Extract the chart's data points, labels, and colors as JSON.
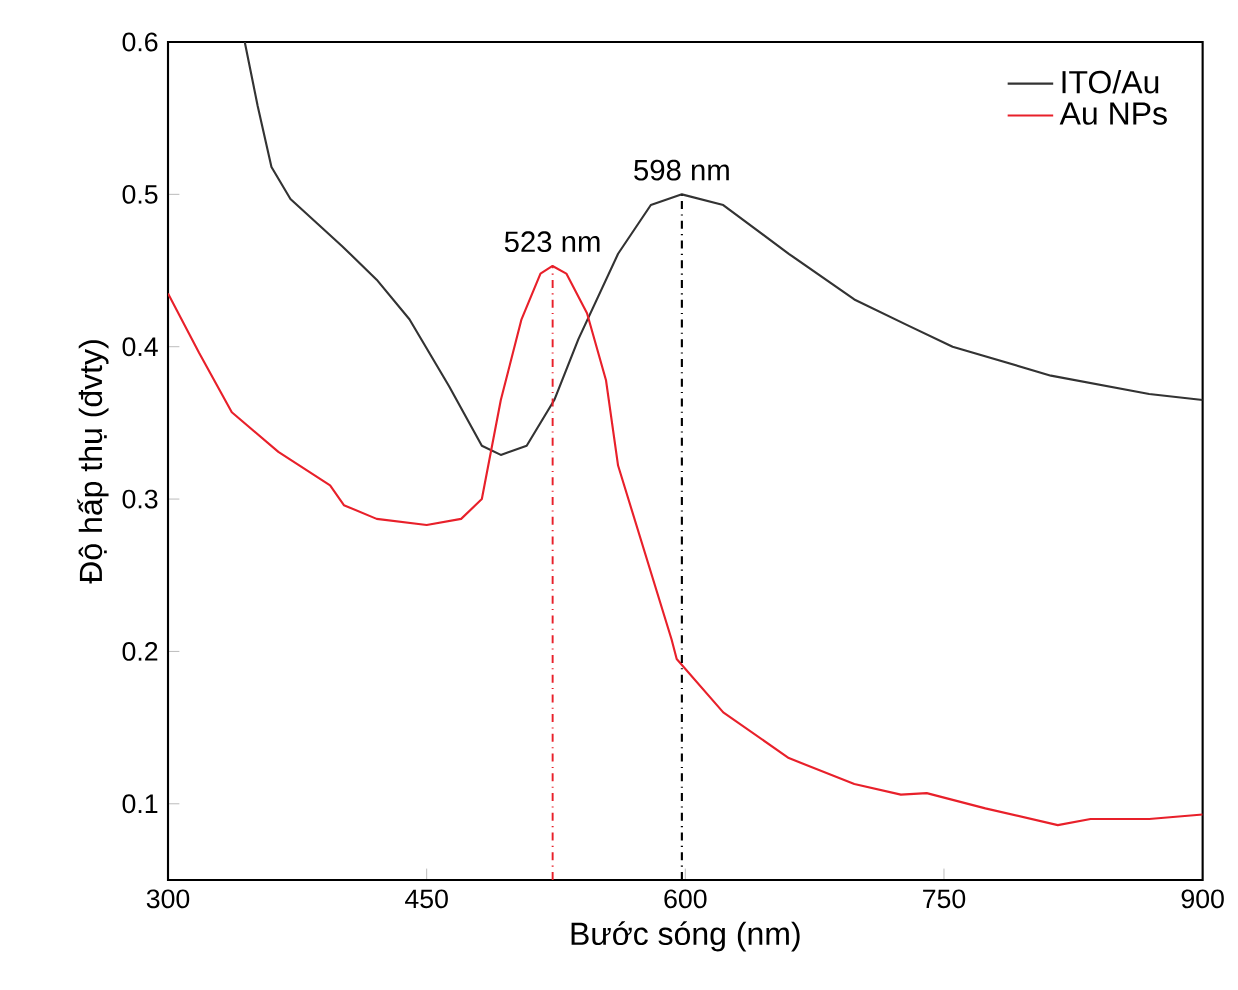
{
  "chart_data": {
    "type": "line",
    "xlabel": "Bước sóng (nm)",
    "ylabel": "Độ hấp thụ (đvty)",
    "xlim": [
      300,
      900
    ],
    "ylim": [
      0.05,
      0.6
    ],
    "xticks": [
      300,
      450,
      600,
      750,
      900
    ],
    "yticks": [
      0.1,
      0.2,
      0.3,
      0.4,
      0.5,
      0.6
    ],
    "grid": false,
    "legend": "top right",
    "marker": "none",
    "line_style": "solid",
    "series": [
      {
        "name": "ITO/Au",
        "color": "#333333",
        "x": [
          344.5,
          352,
          360,
          371,
          401,
          421,
          440,
          463,
          482,
          493,
          508,
          524,
          538,
          561,
          580,
          598,
          622,
          660,
          698,
          729,
          755,
          812,
          869,
          900
        ],
        "values": [
          0.6,
          0.558,
          0.518,
          0.497,
          0.466,
          0.444,
          0.418,
          0.374,
          0.335,
          0.329,
          0.335,
          0.365,
          0.405,
          0.461,
          0.493,
          0.5,
          0.493,
          0.461,
          0.431,
          0.414,
          0.4,
          0.381,
          0.369,
          0.365
        ]
      },
      {
        "name": "Au NPs",
        "color": "#e8202a",
        "x": [
          300,
          318,
          337,
          364,
          394,
          402,
          421,
          450,
          470,
          482,
          493,
          505,
          516,
          523,
          531,
          543,
          554,
          561,
          592,
          595,
          622,
          660,
          698,
          725,
          740,
          774,
          816,
          835,
          869,
          900
        ],
        "values": [
          0.435,
          0.396,
          0.357,
          0.331,
          0.309,
          0.296,
          0.287,
          0.283,
          0.287,
          0.3,
          0.365,
          0.418,
          0.448,
          0.453,
          0.448,
          0.422,
          0.378,
          0.322,
          0.208,
          0.195,
          0.16,
          0.13,
          0.113,
          0.106,
          0.107,
          0.097,
          0.086,
          0.09,
          0.09,
          0.093
        ]
      }
    ],
    "ref_lines": [
      {
        "axis": "x",
        "value": 523,
        "color": "#e8202a",
        "line_style": "dashdot"
      },
      {
        "axis": "x",
        "value": 598,
        "color": "#000000",
        "line_style": "dashdot"
      }
    ],
    "annotations": [
      {
        "text": "523 nm",
        "x": 523,
        "y": 0.453
      },
      {
        "text": "598 nm",
        "x": 598,
        "y": 0.5
      }
    ]
  }
}
